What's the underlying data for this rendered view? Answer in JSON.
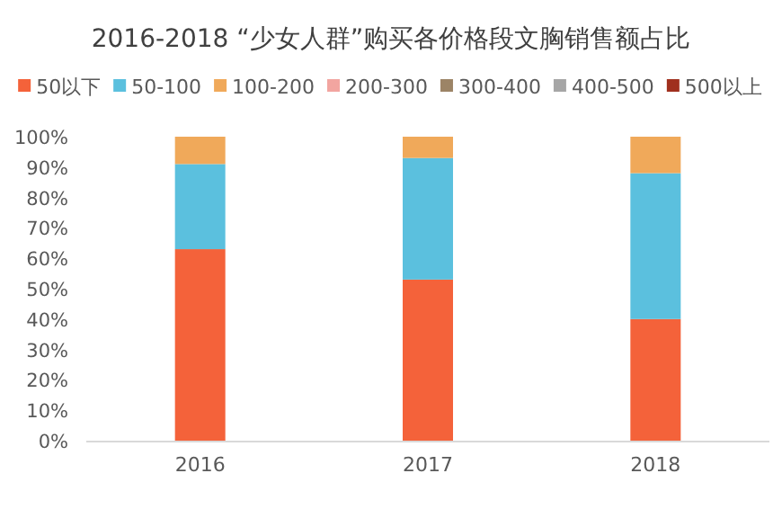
{
  "chart_data": {
    "type": "bar",
    "stacked": true,
    "title": "2016-2018 “少女人群”购买各价格段文胸销售额占比",
    "legend": "top",
    "categories": [
      "2016",
      "2017",
      "2018"
    ],
    "ylim": [
      0,
      100
    ],
    "yticks": [
      {
        "value": 0,
        "label": "0%"
      },
      {
        "value": 10,
        "label": "10%"
      },
      {
        "value": 20,
        "label": "20%"
      },
      {
        "value": 30,
        "label": "30%"
      },
      {
        "value": 40,
        "label": "40%"
      },
      {
        "value": 50,
        "label": "50%"
      },
      {
        "value": 60,
        "label": "60%"
      },
      {
        "value": 70,
        "label": "70%"
      },
      {
        "value": 80,
        "label": "80%"
      },
      {
        "value": 90,
        "label": "90%"
      },
      {
        "value": 100,
        "label": "100%"
      }
    ],
    "series": [
      {
        "name": "50以下",
        "color": "#f4623a",
        "values": [
          63,
          53,
          40
        ]
      },
      {
        "name": "50-100",
        "color": "#5bc0de",
        "values": [
          28,
          40,
          48
        ]
      },
      {
        "name": "100-200",
        "color": "#f0a95a",
        "values": [
          9,
          7,
          12
        ]
      },
      {
        "name": "200-300",
        "color": "#f2a5a0",
        "values": [
          0,
          0,
          0
        ]
      },
      {
        "name": "300-400",
        "color": "#9c8466",
        "values": [
          0,
          0,
          0
        ]
      },
      {
        "name": "400-500",
        "color": "#a6a6a6",
        "values": [
          0,
          0,
          0
        ]
      },
      {
        "name": "500以上",
        "color": "#a0301e",
        "values": [
          0,
          0,
          0
        ]
      }
    ]
  }
}
